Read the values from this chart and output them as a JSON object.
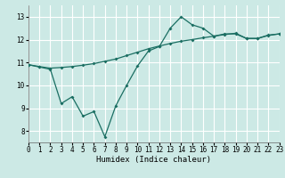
{
  "xlabel": "Humidex (Indice chaleur)",
  "bg_color": "#cce9e5",
  "grid_color": "#ffffff",
  "line_color": "#1a6e62",
  "line1_x": [
    0,
    1,
    2,
    3,
    4,
    5,
    6,
    7,
    8,
    9,
    10,
    11,
    12,
    13,
    14,
    15,
    16,
    17,
    18,
    19,
    20,
    21,
    22,
    23
  ],
  "line1_y": [
    10.9,
    10.8,
    10.7,
    9.2,
    9.5,
    8.65,
    8.85,
    7.75,
    9.1,
    10.0,
    10.85,
    11.5,
    11.7,
    12.5,
    13.0,
    12.65,
    12.5,
    12.15,
    12.25,
    12.25,
    12.05,
    12.05,
    12.2,
    12.25
  ],
  "line2_x": [
    0,
    1,
    2,
    3,
    4,
    5,
    6,
    7,
    8,
    9,
    10,
    11,
    12,
    13,
    14,
    15,
    16,
    17,
    18,
    19,
    20,
    21,
    22,
    23
  ],
  "line2_y": [
    10.9,
    10.82,
    10.75,
    10.78,
    10.82,
    10.88,
    10.95,
    11.05,
    11.15,
    11.3,
    11.45,
    11.6,
    11.72,
    11.83,
    11.93,
    12.0,
    12.08,
    12.15,
    12.22,
    12.28,
    12.05,
    12.05,
    12.18,
    12.25
  ],
  "xlim": [
    0,
    23
  ],
  "ylim": [
    7.5,
    13.5
  ],
  "yticks": [
    8,
    9,
    10,
    11,
    12,
    13
  ],
  "xticks": [
    0,
    1,
    2,
    3,
    4,
    5,
    6,
    7,
    8,
    9,
    10,
    11,
    12,
    13,
    14,
    15,
    16,
    17,
    18,
    19,
    20,
    21,
    22,
    23
  ],
  "font_size": 6.5,
  "tick_font_size": 5.5,
  "lw": 0.9,
  "marker_size": 2.0
}
